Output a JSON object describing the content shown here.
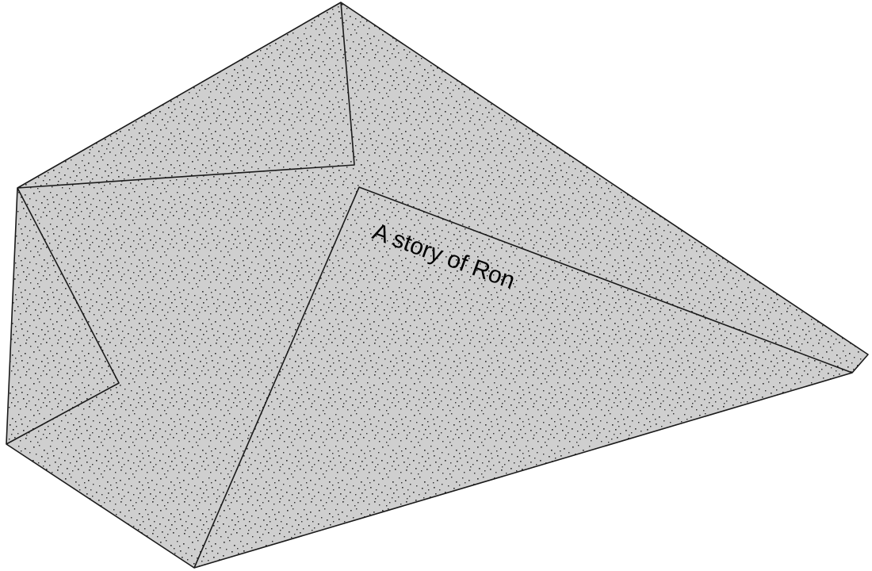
{
  "caption": "A story of Ron",
  "colors": {
    "fill": "#cfcfcf",
    "speckle": "#2b2b2b",
    "outline": "#1a1a1a",
    "background": "#ffffff"
  }
}
